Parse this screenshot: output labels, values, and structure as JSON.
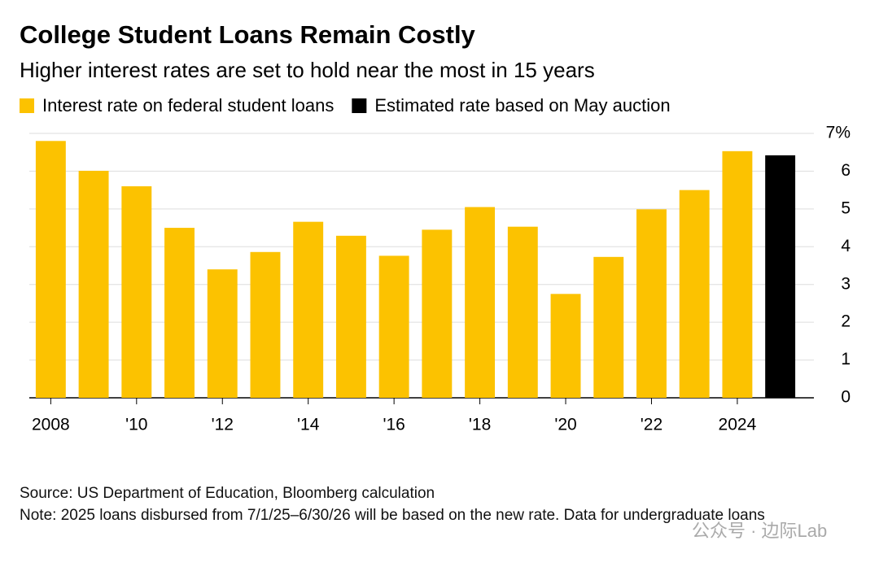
{
  "chart_data": {
    "type": "bar",
    "title": "College Student Loans Remain Costly",
    "subtitle": "Higher interest rates are set to hold near the most in 15 years",
    "categories": [
      "2008",
      null,
      "'10",
      null,
      "'12",
      null,
      "'14",
      null,
      "'16",
      null,
      "'18",
      null,
      "'20",
      null,
      "'22",
      null,
      "2024",
      null
    ],
    "series": [
      {
        "name": "Interest rate on federal student loans",
        "color": "#fcc200",
        "values": [
          6.8,
          6.01,
          5.6,
          4.5,
          3.4,
          3.86,
          4.66,
          4.29,
          3.76,
          4.45,
          5.05,
          4.53,
          2.75,
          3.73,
          4.99,
          5.5,
          6.53,
          null
        ]
      },
      {
        "name": "Estimated rate based on May auction",
        "color": "#000000",
        "values": [
          null,
          null,
          null,
          null,
          null,
          null,
          null,
          null,
          null,
          null,
          null,
          null,
          null,
          null,
          null,
          null,
          null,
          6.42
        ]
      }
    ],
    "ylim": [
      0,
      7
    ],
    "yticks": [
      0,
      1,
      2,
      3,
      4,
      5,
      6,
      {
        "value": 7,
        "label": "7%"
      }
    ],
    "grid": true,
    "source": "Source: US Department of Education, Bloomberg calculation",
    "note": "Note: 2025 loans disbursed from 7/1/25–6/30/26 will be based on the new rate. Data for undergraduate loans",
    "watermark": "公众号 · 边际Lab"
  }
}
